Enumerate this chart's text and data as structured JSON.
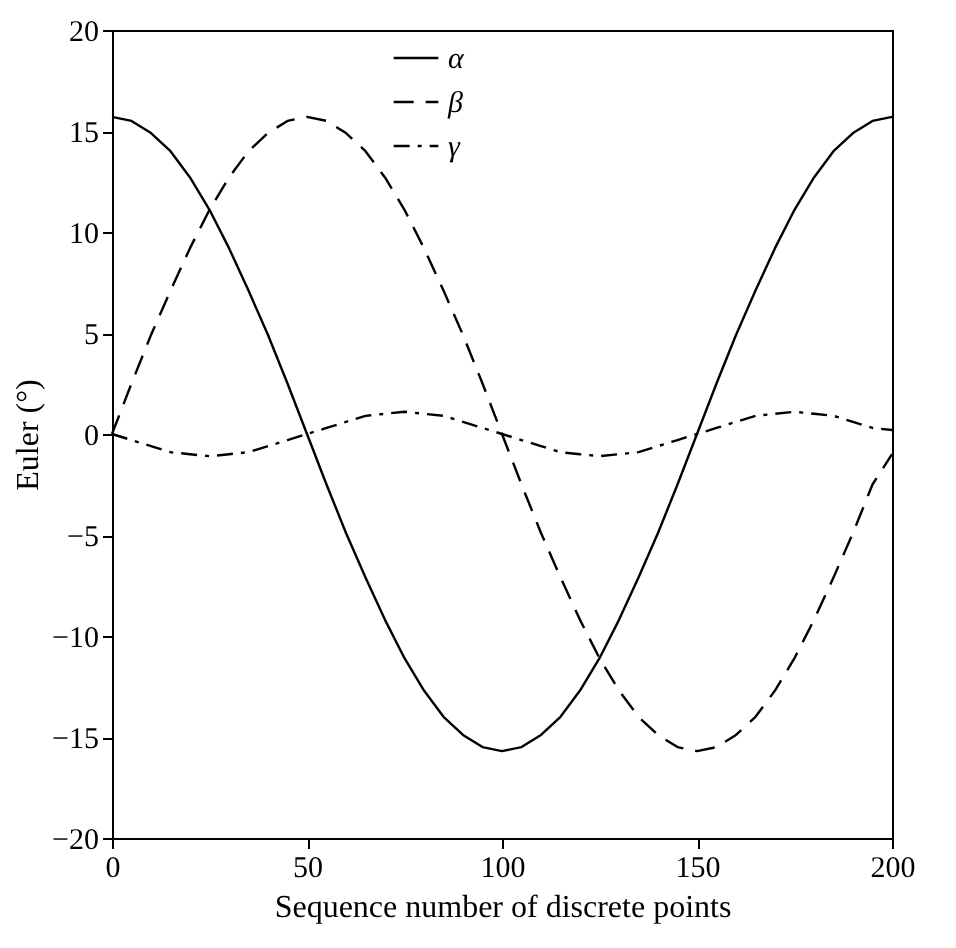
{
  "chart_data": {
    "type": "line",
    "xlabel": "Sequence number of discrete points",
    "ylabel": "Euler (°)",
    "x": [
      0,
      5,
      10,
      15,
      20,
      25,
      30,
      35,
      40,
      45,
      50,
      55,
      60,
      65,
      70,
      75,
      80,
      85,
      90,
      95,
      100,
      105,
      110,
      115,
      120,
      125,
      130,
      135,
      140,
      145,
      150,
      155,
      160,
      165,
      170,
      175,
      180,
      185,
      190,
      195,
      200
    ],
    "series": [
      {
        "name": "α",
        "color": "#000000",
        "line_style": "solid",
        "values": [
          15.7,
          15.5,
          14.9,
          14.0,
          12.7,
          11.1,
          9.2,
          7.1,
          4.9,
          2.5,
          0,
          -2.5,
          -4.9,
          -7.1,
          -9.2,
          -11.1,
          -12.7,
          -14.0,
          -14.9,
          -15.5,
          -15.7,
          -15.5,
          -14.9,
          -14.0,
          -12.7,
          -11.1,
          -9.2,
          -7.1,
          -4.9,
          -2.5,
          0,
          2.5,
          4.9,
          7.1,
          9.2,
          11.1,
          12.7,
          14.0,
          14.9,
          15.5,
          15.7
        ]
      },
      {
        "name": "β",
        "color": "#000000",
        "line_style": "dashed",
        "values": [
          0,
          2.5,
          4.9,
          7.1,
          9.2,
          11.1,
          12.7,
          14.0,
          14.9,
          15.5,
          15.7,
          15.5,
          14.9,
          14.0,
          12.7,
          11.1,
          9.2,
          7.1,
          4.9,
          2.5,
          0,
          -2.5,
          -4.9,
          -7.1,
          -9.2,
          -11.1,
          -12.7,
          -14.0,
          -14.9,
          -15.5,
          -15.7,
          -15.5,
          -14.9,
          -14.0,
          -12.7,
          -11.1,
          -9.2,
          -7.1,
          -4.9,
          -2.5,
          -1
        ]
      },
      {
        "name": "γ",
        "color": "#000000",
        "line_style": "dashdot",
        "values": [
          0,
          -0.3,
          -0.6,
          -0.9,
          -1.0,
          -1.1,
          -1.0,
          -0.9,
          -0.6,
          -0.3,
          0,
          0.3,
          0.6,
          0.9,
          1.0,
          1.1,
          1.0,
          0.9,
          0.6,
          0.3,
          0,
          -0.3,
          -0.6,
          -0.9,
          -1.0,
          -1.1,
          -1.0,
          -0.9,
          -0.6,
          -0.3,
          0,
          0.3,
          0.6,
          0.9,
          1.0,
          1.1,
          1.0,
          0.9,
          0.6,
          0.3,
          0.2
        ]
      }
    ],
    "xlim": [
      0,
      200
    ],
    "xticks": [
      0,
      50,
      100,
      150,
      200
    ],
    "ylim": [
      -20,
      20
    ],
    "yticks": [
      -20,
      -15,
      -10,
      -5,
      0,
      5,
      10,
      15,
      20
    ],
    "grid": false,
    "legend": "top",
    "marker": "none"
  }
}
